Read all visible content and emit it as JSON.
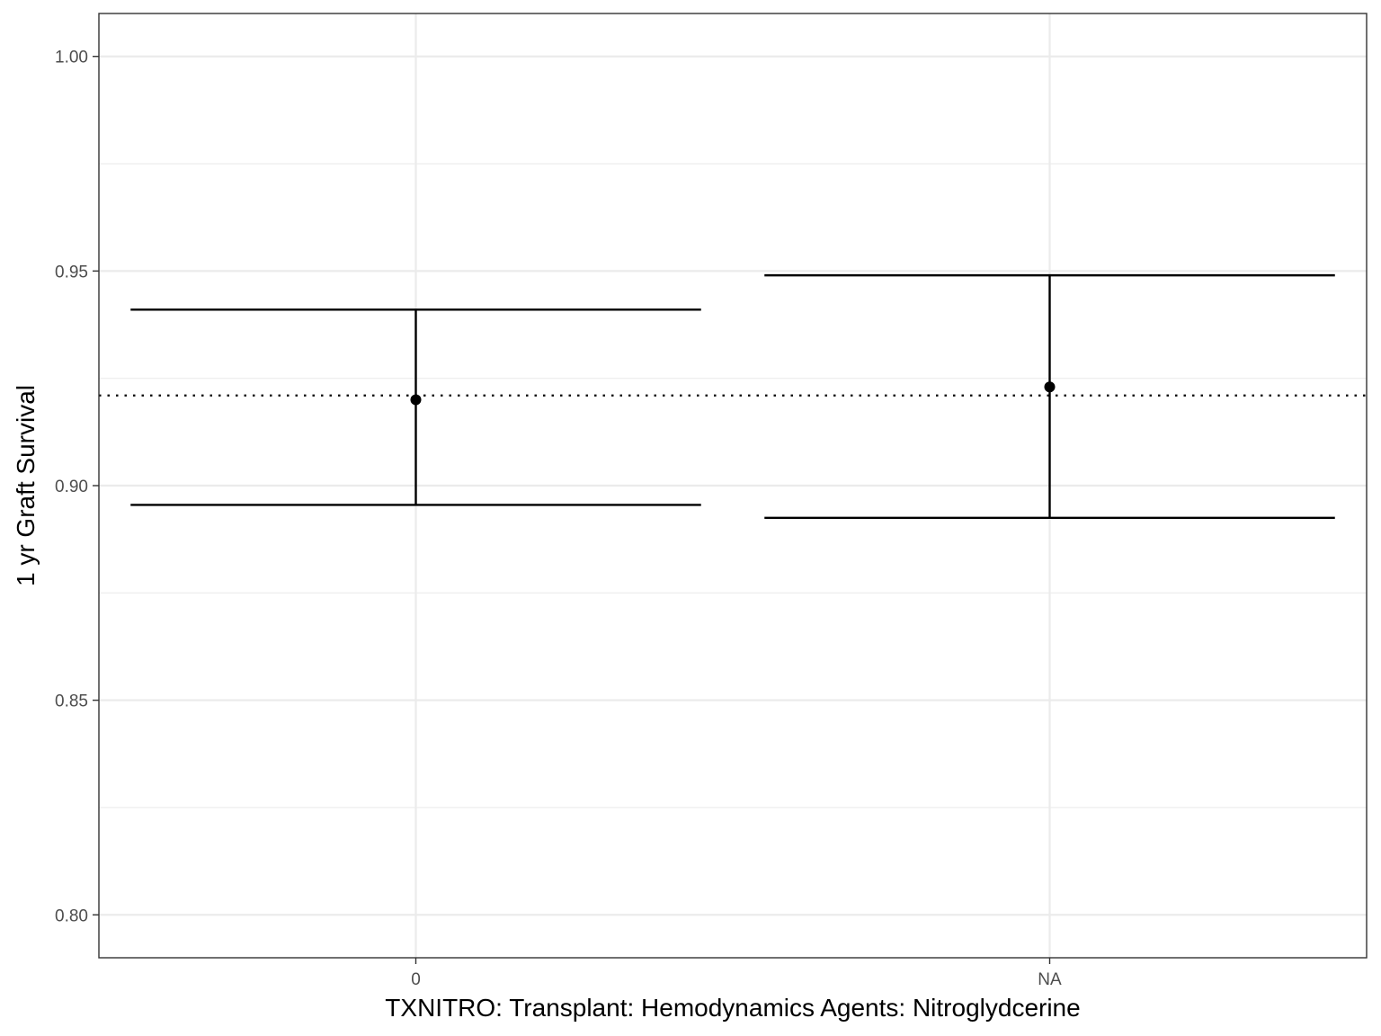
{
  "chart_data": {
    "type": "errorbar",
    "title": "",
    "xlabel": "TXNITRO: Transplant: Hemodynamics Agents: Nitroglydcerine",
    "ylabel": "1 yr Graft Survival",
    "categories": [
      "0",
      "NA"
    ],
    "points": [
      {
        "category": "0",
        "estimate": 0.92,
        "lower": 0.8955,
        "upper": 0.941
      },
      {
        "category": "NA",
        "estimate": 0.923,
        "lower": 0.8925,
        "upper": 0.949
      }
    ],
    "reference_line": {
      "value": 0.921,
      "style": "dotted"
    },
    "ylim": [
      0.79,
      1.01
    ],
    "yticks": [
      0.8,
      0.85,
      0.9,
      0.95,
      1.0
    ],
    "ytick_labels": [
      "0.80",
      "0.85",
      "0.90",
      "0.95",
      "1.00"
    ],
    "grid": true,
    "legend": "none",
    "colors": {
      "mark": "#000000",
      "grid": "#ebebeb",
      "panel_border": "#333333",
      "tick_label": "#4d4d4d"
    }
  }
}
